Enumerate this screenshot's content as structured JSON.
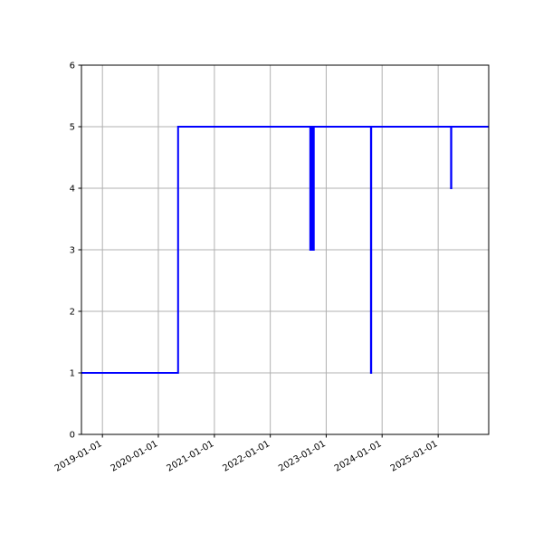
{
  "chart_data": {
    "type": "line",
    "step": "post",
    "title": "",
    "xlabel": "",
    "ylabel": "",
    "x_type": "date",
    "xlim": [
      "2018-08-17",
      "2025-11-27"
    ],
    "ylim": [
      0,
      6
    ],
    "grid": true,
    "x_ticks": [
      "2019-01-01",
      "2020-01-01",
      "2021-01-01",
      "2022-01-01",
      "2023-01-01",
      "2024-01-01",
      "2025-01-01"
    ],
    "y_ticks": [
      0,
      1,
      2,
      3,
      4,
      5,
      6
    ],
    "series": [
      {
        "color": "#0000ff",
        "points": [
          [
            "2018-08-17",
            1
          ],
          [
            "2020-05-09",
            5
          ],
          [
            "2022-09-19",
            3
          ],
          [
            "2022-09-26",
            5
          ],
          [
            "2022-09-28",
            3
          ],
          [
            "2022-10-05",
            5
          ],
          [
            "2022-10-06",
            3
          ],
          [
            "2022-10-12",
            5
          ],
          [
            "2023-10-20",
            1
          ],
          [
            "2023-10-22",
            5
          ],
          [
            "2025-03-26",
            4
          ],
          [
            "2025-03-28",
            5
          ],
          [
            "2025-11-27",
            5
          ]
        ]
      }
    ]
  }
}
